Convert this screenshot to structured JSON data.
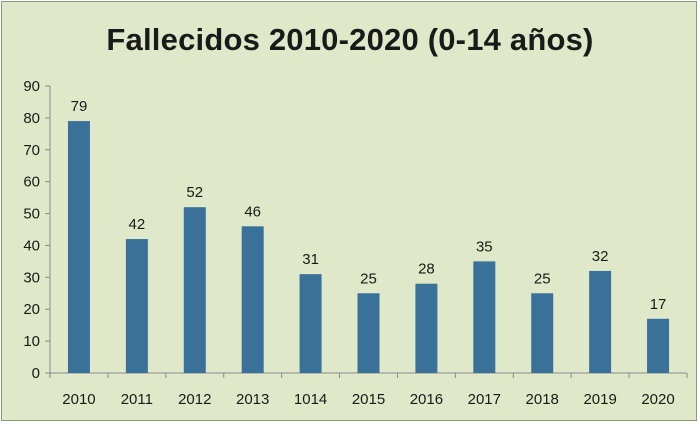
{
  "chart_data": {
    "type": "bar",
    "title": "Fallecidos 2010-2020 (0-14 años)",
    "xlabel": "",
    "ylabel": "",
    "categories": [
      "2010",
      "2011",
      "2012",
      "2013",
      "1014",
      "2015",
      "2016",
      "2017",
      "2018",
      "2019",
      "2020"
    ],
    "values": [
      79,
      42,
      52,
      46,
      31,
      25,
      28,
      35,
      25,
      32,
      17
    ],
    "data_labels": [
      "79",
      "42",
      "52",
      "46",
      "31",
      "25",
      "28",
      "35",
      "25",
      "32",
      "17"
    ],
    "ylim": [
      0,
      90
    ],
    "yticks": [
      "0",
      "10",
      "20",
      "30",
      "40",
      "50",
      "60",
      "70",
      "80",
      "90"
    ],
    "grid": false,
    "legend": "none",
    "colors": {
      "bar": "#3a7198",
      "background": "#dfe8c8",
      "axis": "#8a8a8a"
    }
  }
}
